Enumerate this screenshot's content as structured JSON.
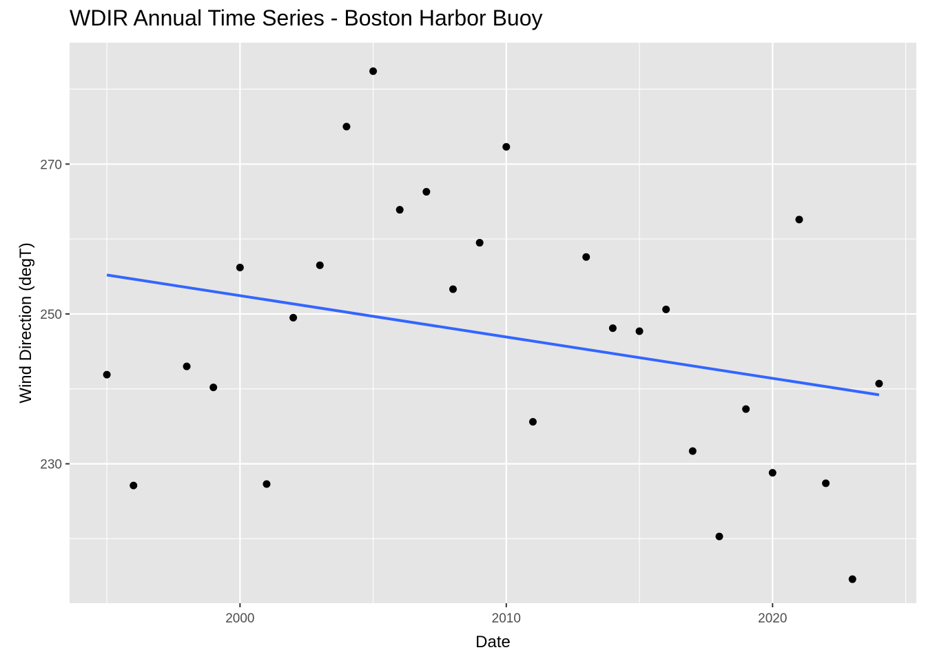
{
  "chart_data": {
    "type": "scatter",
    "title": "WDIR Annual Time Series - Boston Harbor Buoy",
    "xlabel": "Date",
    "ylabel": "Wind Direction (degT)",
    "xlim": [
      1993.6,
      2025.4
    ],
    "ylim": [
      211.4,
      286.2
    ],
    "x_ticks": [
      2000,
      2010,
      2020
    ],
    "x_tick_labels": [
      "2000",
      "2010",
      "2020"
    ],
    "x_minor_ticks": [
      1995,
      2005,
      2015,
      2025
    ],
    "y_ticks": [
      230,
      250,
      270
    ],
    "y_tick_labels": [
      "230",
      "250",
      "270"
    ],
    "y_minor_ticks": [
      220,
      240,
      260,
      280
    ],
    "grid": true,
    "panel_background": "#e5e5e5",
    "grid_color": "#ffffff",
    "point_color": "#000000",
    "trend_color": "#3366ff",
    "series": [
      {
        "type": "scatter",
        "x": [
          1995,
          1996,
          1998,
          1999,
          2000,
          2001,
          2002,
          2003,
          2004,
          2005,
          2006,
          2007,
          2008,
          2009,
          2010,
          2011,
          2013,
          2014,
          2015,
          2016,
          2017,
          2018,
          2019,
          2020,
          2021,
          2022,
          2023,
          2024
        ],
        "y": [
          241.9,
          227.1,
          243.0,
          240.2,
          256.2,
          227.3,
          249.5,
          256.5,
          275.0,
          282.4,
          263.9,
          266.3,
          253.3,
          259.5,
          272.3,
          235.6,
          257.6,
          248.1,
          247.7,
          250.6,
          231.7,
          220.3,
          237.3,
          228.8,
          262.6,
          227.4,
          214.6,
          240.7
        ]
      },
      {
        "type": "trend",
        "x": [
          1995,
          2024
        ],
        "y": [
          255.2,
          239.2
        ]
      }
    ]
  }
}
